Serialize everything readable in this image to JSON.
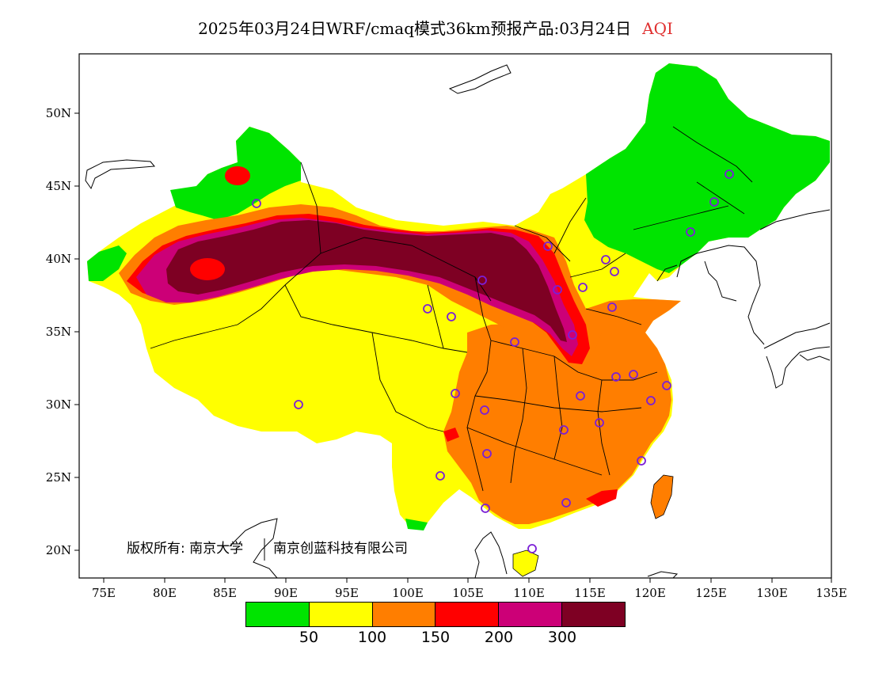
{
  "title": {
    "main": "2025年03月24日WRF/cmaq模式36km预报产品:03月24日",
    "variable": "AQI"
  },
  "map": {
    "lat_labels": [
      "50N",
      "45N",
      "40N",
      "35N",
      "30N",
      "25N",
      "20N"
    ],
    "lon_labels": [
      "75E",
      "80E",
      "85E",
      "90E",
      "95E",
      "100E",
      "105E",
      "110E",
      "115E",
      "120E",
      "125E",
      "130E",
      "135E"
    ],
    "copyright_left": "版权所有: 南京大学",
    "copyright_right": "南京创蓝科技有限公司",
    "colors": {
      "aqi_0_50": "#00e400",
      "aqi_50_100": "#ffff00",
      "aqi_100_150": "#ff7e00",
      "aqi_150_200": "#ff0000",
      "aqi_200_300": "#cc0077",
      "aqi_300_plus": "#7e0023",
      "station_marker": "#7b1fd6"
    }
  },
  "legend": {
    "colors": [
      "#00e400",
      "#ffff00",
      "#ff7e00",
      "#ff0000",
      "#cc0077",
      "#7e0023"
    ],
    "labels": [
      "50",
      "100",
      "150",
      "200",
      "300"
    ]
  }
}
